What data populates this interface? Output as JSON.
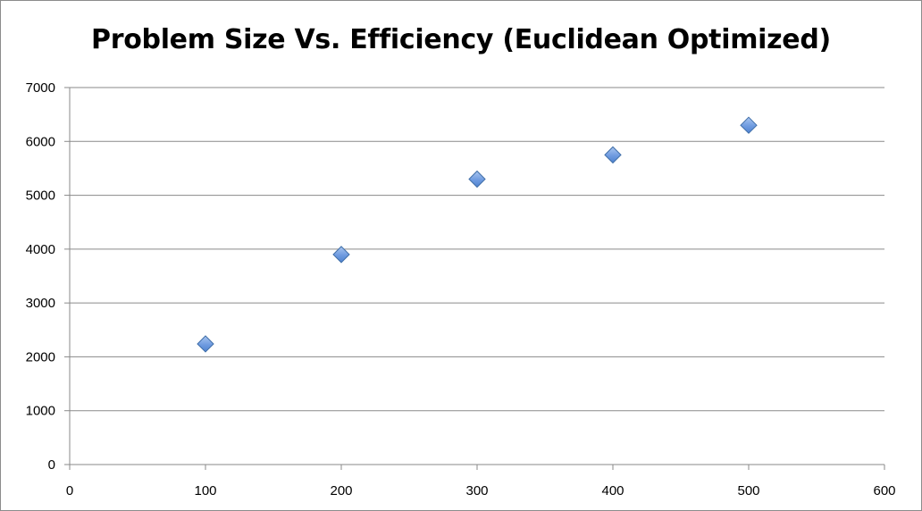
{
  "chart_data": {
    "type": "scatter",
    "title": "Problem Size Vs. Efficiency (Euclidean Optimized)",
    "xlabel": "",
    "ylabel": "",
    "xlim": [
      0,
      600
    ],
    "ylim": [
      0,
      7000
    ],
    "x_ticks": [
      0,
      100,
      200,
      300,
      400,
      500,
      600
    ],
    "y_ticks": [
      0,
      1000,
      2000,
      3000,
      4000,
      5000,
      6000,
      7000
    ],
    "grid": "horizontal",
    "legend": "none",
    "marker": "diamond",
    "marker_color": "#5b8fd9",
    "marker_edge_color": "#3f6ea8",
    "series": [
      {
        "x": [
          100,
          200,
          300,
          400,
          500
        ],
        "y": [
          2240,
          3900,
          5300,
          5750,
          6300
        ]
      }
    ]
  }
}
